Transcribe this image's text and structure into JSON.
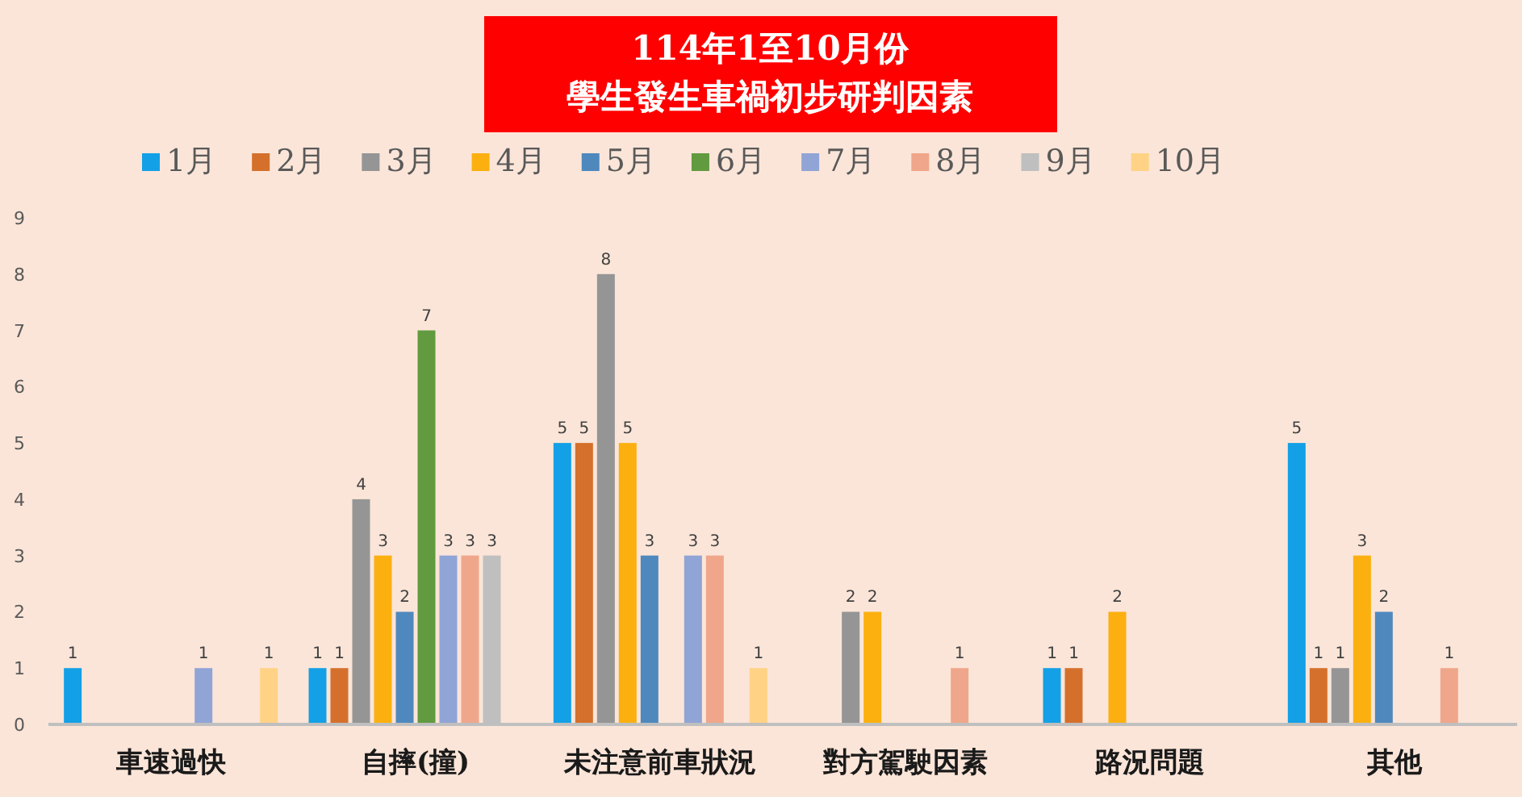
{
  "chart_data": {
    "type": "bar",
    "title": "114年1至10月份",
    "subtitle": "學生發生車禍初步研判因素",
    "categories": [
      "車速過快",
      "自摔(撞)",
      "未注意前車狀況",
      "對方駕駛因素",
      "路況問題",
      "其他"
    ],
    "series": [
      {
        "name": "1月",
        "color": "#13a0e6",
        "values": [
          1,
          1,
          5,
          null,
          1,
          5
        ]
      },
      {
        "name": "2月",
        "color": "#d4702c",
        "values": [
          null,
          1,
          5,
          null,
          1,
          1
        ]
      },
      {
        "name": "3月",
        "color": "#959595",
        "values": [
          null,
          4,
          8,
          2,
          null,
          1
        ]
      },
      {
        "name": "4月",
        "color": "#fbb010",
        "values": [
          null,
          3,
          5,
          2,
          2,
          3
        ]
      },
      {
        "name": "5月",
        "color": "#4f88bd",
        "values": [
          null,
          2,
          3,
          null,
          null,
          2
        ]
      },
      {
        "name": "6月",
        "color": "#629a40",
        "values": [
          null,
          7,
          null,
          null,
          null,
          null
        ]
      },
      {
        "name": "7月",
        "color": "#90a4d6",
        "values": [
          1,
          3,
          3,
          null,
          null,
          null
        ]
      },
      {
        "name": "8月",
        "color": "#f0a68a",
        "values": [
          null,
          3,
          3,
          1,
          null,
          1
        ]
      },
      {
        "name": "9月",
        "color": "#bfbfbf",
        "values": [
          null,
          3,
          null,
          null,
          null,
          null
        ]
      },
      {
        "name": "10月",
        "color": "#ffd285",
        "values": [
          1,
          null,
          1,
          null,
          null,
          null
        ]
      }
    ],
    "ylim": [
      0,
      9
    ],
    "yticks": [
      0,
      1,
      2,
      3,
      4,
      5,
      6,
      7,
      8,
      9
    ],
    "grid": false,
    "legend": "top",
    "data_labels": true
  }
}
